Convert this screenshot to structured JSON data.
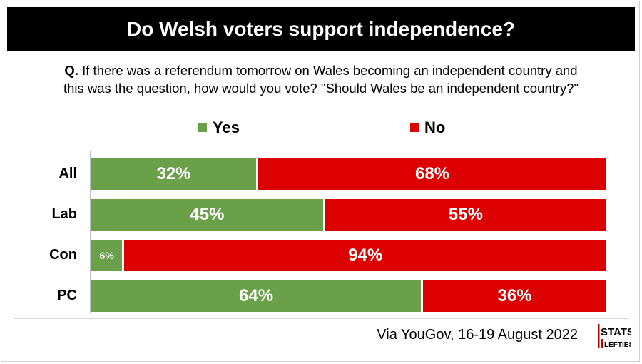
{
  "header": {
    "title": "Do Welsh voters support independence?"
  },
  "question": {
    "prefix": "Q.",
    "line1": "If there was a referendum tomorrow on Wales becoming an independent country and",
    "line2": "this was the question, how would you vote? \"Should Wales be an independent country?\""
  },
  "colors": {
    "yes": "#6aa04a",
    "no": "#dd0000"
  },
  "chart_data": {
    "type": "bar",
    "orientation": "horizontal",
    "stacked": true,
    "normalized": true,
    "title": "Do Welsh voters support independence?",
    "categories": [
      "All",
      "Lab",
      "Con",
      "PC"
    ],
    "series": [
      {
        "name": "Yes",
        "values": [
          32,
          45,
          6,
          64
        ],
        "labels": [
          "32%",
          "45%",
          "6%",
          "64%"
        ]
      },
      {
        "name": "No",
        "values": [
          68,
          55,
          94,
          36
        ],
        "labels": [
          "68%",
          "55%",
          "94%",
          "36%"
        ]
      }
    ],
    "xlim": [
      0,
      100
    ],
    "legend": "top-center"
  },
  "footer": {
    "source": "Via YouGov, 16-19 August 2022"
  },
  "logo": {
    "top": "STATS",
    "bottom": "LEFTIES"
  }
}
